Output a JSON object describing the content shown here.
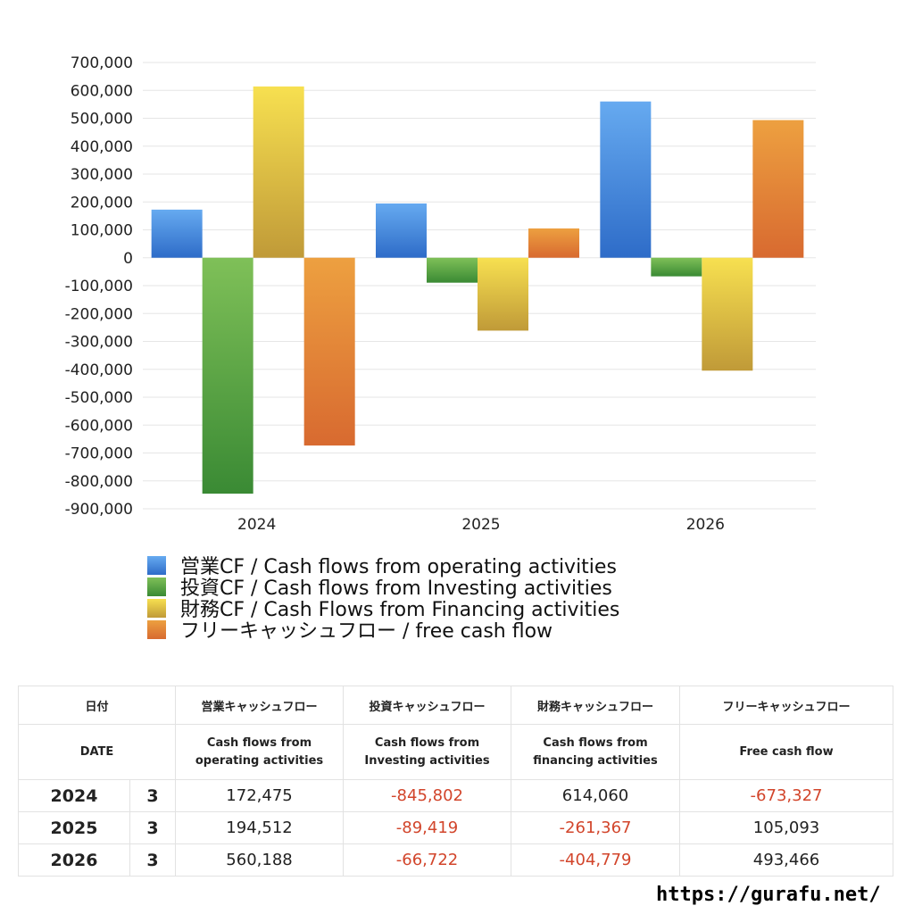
{
  "chart_data": {
    "type": "bar",
    "categories": [
      "2024",
      "2025",
      "2026"
    ],
    "ylim": [
      -900000,
      700000
    ],
    "yticks": [
      700000,
      600000,
      500000,
      400000,
      300000,
      200000,
      100000,
      0,
      -100000,
      -200000,
      -300000,
      -400000,
      -500000,
      -600000,
      -700000,
      -800000,
      -900000
    ],
    "ytick_labels": [
      "700,000",
      "600,000",
      "500,000",
      "400,000",
      "300,000",
      "200,000",
      "100,000",
      "0",
      "-100,000",
      "-200,000",
      "-300,000",
      "-400,000",
      "-500,000",
      "-600,000",
      "-700,000",
      "-800,000",
      "-900,000"
    ],
    "grid": true,
    "legend_position": "bottom",
    "series": [
      {
        "name": "営業CF / Cash flows from operating activities",
        "values": [
          172475,
          194512,
          560188
        ],
        "color_top": "#66aaf0",
        "color_bottom": "#2e6cc8"
      },
      {
        "name": "投資CF / Cash flows from Investing activities",
        "values": [
          -845802,
          -89419,
          -66722
        ],
        "color_top": "#7fc058",
        "color_bottom": "#3a8a34"
      },
      {
        "name": "財務CF / Cash Flows from Financing activities",
        "values": [
          614060,
          -261367,
          -404779
        ],
        "color_top": "#f7e050",
        "color_bottom": "#c09a38"
      },
      {
        "name": "フリーキャッシュフロー / free cash flow",
        "values": [
          -673327,
          105093,
          493466
        ],
        "color_top": "#eda040",
        "color_bottom": "#d86a30"
      }
    ]
  },
  "table": {
    "headers_jp": [
      "日付",
      "営業キャッシュフロー",
      "投資キャッシュフロー",
      "財務キャッシュフロー",
      "フリーキャッシュフロー"
    ],
    "headers_en": [
      "DATE",
      "Cash flows from\noperating activities",
      "Cash flows from\nInvesting activities",
      "Cash flows from\nfinancing activities",
      "Free cash flow"
    ],
    "rows": [
      {
        "year": "2024",
        "month": "3",
        "operating": "172,475",
        "investing": "-845,802",
        "financing": "614,060",
        "free": "-673,327"
      },
      {
        "year": "2025",
        "month": "3",
        "operating": "194,512",
        "investing": "-89,419",
        "financing": "-261,367",
        "free": "105,093"
      },
      {
        "year": "2026",
        "month": "3",
        "operating": "560,188",
        "investing": "-66,722",
        "financing": "-404,779",
        "free": "493,466"
      }
    ]
  },
  "footer": {
    "url": "https://gurafu.net/"
  }
}
